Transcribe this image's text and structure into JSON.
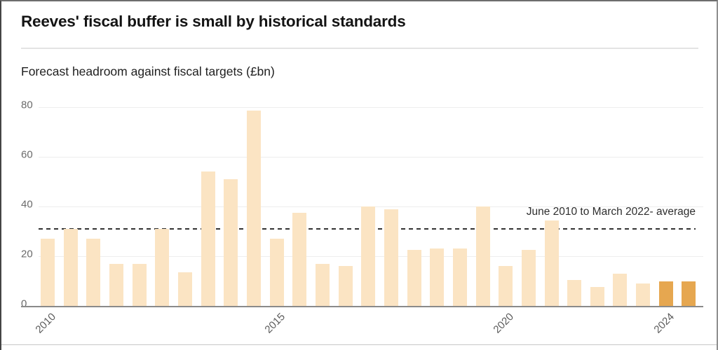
{
  "header": {
    "title": "Reeves' fiscal buffer is small by historical standards",
    "subtitle": "Forecast headroom against fiscal targets (£bn)"
  },
  "chart_data": {
    "type": "bar",
    "title": "Reeves' fiscal buffer is small by historical standards",
    "ylabel": "Forecast headroom against fiscal targets (£bn)",
    "xlabel": "",
    "values": [
      27,
      31,
      27,
      17,
      17,
      31,
      13.5,
      54,
      51,
      78.5,
      27,
      37.5,
      17,
      16,
      40,
      39,
      22.5,
      23,
      23,
      40,
      16,
      22.5,
      34.5,
      10.5,
      7.5,
      13,
      9,
      9.9,
      9.9
    ],
    "highlight_indices": [
      27,
      28
    ],
    "x_ticks": [
      {
        "label": "2010",
        "bar_index": 0
      },
      {
        "label": "2015",
        "bar_index": 10
      },
      {
        "label": "2020",
        "bar_index": 20
      },
      {
        "label": "2024",
        "bar_index": 27
      }
    ],
    "y_ticks": [
      0,
      20,
      40,
      60,
      80
    ],
    "ylim": [
      0,
      84
    ],
    "grid": "horizontal",
    "average_line": {
      "value": 31,
      "label": "June 2010 to March 2022- average",
      "style": "dashed"
    },
    "colors": {
      "bar": "#fbe4c3",
      "highlight_bar": "#e6a750",
      "average_line": "#333333",
      "gridline": "#ededed",
      "axis": "#8a8a8a"
    }
  }
}
